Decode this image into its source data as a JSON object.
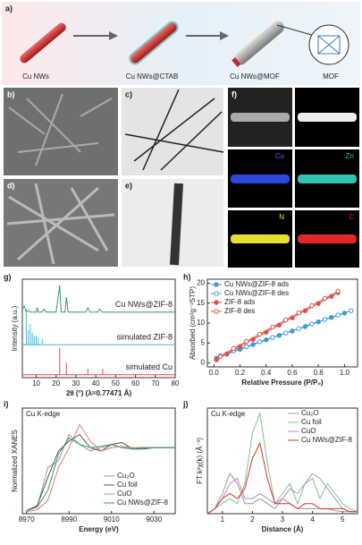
{
  "figure": {
    "a": {
      "label": "a)",
      "items": [
        "Cu NWs",
        "Cu NWs@CTAB",
        "Cu NWs@MOF",
        "MOF"
      ]
    },
    "panels": [
      "b)",
      "c)",
      "d)",
      "e)",
      "f)"
    ],
    "f_maps": [
      "Cu",
      "Zn",
      "N",
      "C"
    ]
  },
  "chart_data": [
    {
      "type": "line",
      "panel": "g)",
      "xlabel": "2θ (°) (λ=0.77471 Å)",
      "ylabel": "Intensity (a.u.)",
      "xlim": [
        3,
        80
      ],
      "xticks": [
        10,
        20,
        30,
        40,
        50,
        60,
        70,
        80
      ],
      "ylim": [
        0,
        3.3
      ],
      "legend": "inline",
      "series": [
        {
          "name": "Cu NWs@ZIF-8",
          "color": "#3a9a6a",
          "x": [
            3,
            4,
            5,
            6,
            7,
            8,
            9,
            10,
            10.5,
            11,
            13,
            14,
            15,
            20,
            21.8,
            22.5,
            24.5,
            25.2,
            26,
            35,
            36,
            37,
            41,
            42,
            43,
            60,
            80
          ],
          "values": [
            2.3,
            2.4,
            2.2,
            2.25,
            2.2,
            2.2,
            2.2,
            2.2,
            2.35,
            2.2,
            2.2,
            2.3,
            2.2,
            2.2,
            3.1,
            2.2,
            2.2,
            2.7,
            2.2,
            2.2,
            2.35,
            2.2,
            2.2,
            2.3,
            2.2,
            2.2,
            2.2
          ]
        },
        {
          "name": "simulated ZIF-8",
          "color": "#4ab3d6",
          "x": [
            3,
            5,
            5,
            5,
            6,
            6,
            6,
            7,
            7,
            7,
            8,
            8,
            8,
            9,
            9,
            9,
            10,
            10,
            10,
            11,
            11,
            11,
            13,
            13,
            13,
            80
          ],
          "values": [
            1.1,
            1.1,
            2.3,
            1.1,
            1.1,
            1.6,
            1.1,
            1.1,
            1.8,
            1.1,
            1.1,
            1.5,
            1.1,
            1.1,
            1.4,
            1.1,
            1.1,
            1.4,
            1.1,
            1.1,
            1.35,
            1.1,
            1.1,
            1.3,
            1.1,
            1.1
          ]
        },
        {
          "name": "simulated Cu",
          "color": "#e0504a",
          "x": [
            3,
            21.8,
            21.8,
            21.8,
            25.2,
            25.2,
            25.2,
            36,
            36,
            36,
            43.5,
            43.5,
            43.5,
            80
          ],
          "values": [
            0.1,
            0.1,
            1.0,
            0.1,
            0.1,
            0.5,
            0.1,
            0.1,
            0.3,
            0.1,
            0.1,
            0.3,
            0.1,
            0.1
          ]
        }
      ]
    },
    {
      "type": "scatter",
      "panel": "h)",
      "xlabel": "Relative Pressure (P/P₀)",
      "ylabel": "Absorbed (cm³g⁻¹STP)",
      "xlim": [
        -0.05,
        1.1
      ],
      "xticks": [
        {
          "value": 0,
          "label": "0.0"
        },
        {
          "value": 0.2,
          "label": "0.2"
        },
        {
          "value": 0.4,
          "label": "0.4"
        },
        {
          "value": 0.6,
          "label": "0.6"
        },
        {
          "value": 0.8,
          "label": "0.8"
        },
        {
          "value": 1,
          "label": "1.0"
        }
      ],
      "ylim": [
        -1,
        21
      ],
      "yticks": [
        0,
        5,
        10,
        15,
        20
      ],
      "legend": "top-left",
      "series": [
        {
          "name": "Cu NWs@ZIF-8 ads",
          "color": "#3a9bd6",
          "marker": "filled",
          "x": [
            0.02,
            0.1,
            0.2,
            0.3,
            0.4,
            0.5,
            0.6,
            0.7,
            0.8,
            0.9,
            1.0
          ],
          "values": [
            1.2,
            2.2,
            3.4,
            4.6,
            5.8,
            6.9,
            8.0,
            9.1,
            10.3,
            11.4,
            12.5
          ]
        },
        {
          "name": "Cu NWs@ZIF-8 des",
          "color": "#3a9bd6",
          "marker": "open",
          "x": [
            1.05,
            0.95,
            0.85,
            0.75,
            0.65,
            0.55,
            0.45,
            0.35,
            0.25,
            0.15,
            0.05
          ],
          "values": [
            13.1,
            12.0,
            10.9,
            9.8,
            8.6,
            7.5,
            6.4,
            5.3,
            4.1,
            3.0,
            1.8
          ]
        },
        {
          "name": "ZIF-8 ads",
          "color": "#e0504a",
          "marker": "filled",
          "x": [
            0.02,
            0.1,
            0.2,
            0.3,
            0.4,
            0.5,
            0.6,
            0.7,
            0.8,
            0.9,
            0.95
          ],
          "values": [
            0.8,
            2.3,
            4.1,
            5.9,
            7.7,
            9.5,
            11.3,
            13.1,
            14.9,
            16.7,
            17.6
          ]
        },
        {
          "name": "ZIF-8 des",
          "color": "#e0504a",
          "marker": "open",
          "x": [
            0.95,
            0.85,
            0.75,
            0.65,
            0.55,
            0.45,
            0.35,
            0.25,
            0.15,
            0.05
          ],
          "values": [
            18.0,
            16.2,
            14.4,
            12.6,
            10.8,
            9.0,
            7.2,
            5.4,
            3.6,
            1.6
          ]
        }
      ]
    },
    {
      "type": "line",
      "panel": "i)",
      "title": "Cu K-edge",
      "xlabel": "Energy (eV)",
      "ylabel": "Normalized XANES",
      "xlim": [
        8968,
        9040
      ],
      "xticks": [
        8970,
        8990,
        9010,
        9030
      ],
      "ylim": [
        0,
        1.6
      ],
      "legend": "bottom-right",
      "x": [
        8970,
        8975,
        8980,
        8985,
        8990,
        8995,
        9000,
        9005,
        9010,
        9015,
        9020,
        9025,
        9030,
        9035,
        9040
      ],
      "series": [
        {
          "name": "Cu₂O",
          "color": "#999999",
          "values": [
            0.04,
            0.1,
            0.7,
            0.8,
            1.2,
            1.05,
            0.95,
            1.0,
            1.05,
            1.0,
            1.0,
            1.0,
            1.0,
            1.0,
            1.0
          ]
        },
        {
          "name": "Cu foil",
          "color": "#555555",
          "values": [
            0.05,
            0.12,
            0.55,
            0.95,
            1.1,
            1.2,
            1.0,
            0.95,
            1.05,
            1.08,
            0.98,
            0.98,
            1.0,
            1.0,
            1.0
          ]
        },
        {
          "name": "CuO",
          "color": "#e07a7a",
          "values": [
            0.03,
            0.06,
            0.2,
            0.7,
            1.0,
            1.35,
            1.1,
            0.95,
            1.0,
            1.02,
            1.0,
            1.0,
            1.0,
            1.0,
            1.0
          ]
        },
        {
          "name": "Cu NWs@ZIF-8",
          "color": "#3a9a6a",
          "values": [
            0.05,
            0.1,
            0.35,
            0.9,
            1.15,
            1.05,
            1.0,
            1.02,
            1.05,
            1.0,
            0.98,
            1.0,
            1.0,
            1.0,
            1.0
          ]
        }
      ]
    },
    {
      "type": "line",
      "panel": "j)",
      "title": "Cu K-edge",
      "xlabel": "Distance (Å)",
      "ylabel": "FT k²χ(k) (Å⁻³)",
      "xlim": [
        0.5,
        5.5
      ],
      "xticks": [
        1,
        2,
        3,
        4,
        5
      ],
      "ylim": [
        0,
        1.05
      ],
      "legend": "top-right",
      "x": [
        0.5,
        0.75,
        1,
        1.25,
        1.5,
        1.75,
        2,
        2.25,
        2.5,
        2.75,
        3,
        3.25,
        3.5,
        3.75,
        4,
        4.25,
        4.5,
        4.75,
        5,
        5.25,
        5.5
      ],
      "series": [
        {
          "name": "Cu₂O",
          "color": "#999999",
          "values": [
            0,
            0.05,
            0.2,
            0.4,
            0.3,
            0.1,
            0.1,
            0.15,
            0.1,
            0.05,
            0.15,
            0.1,
            0.05,
            0.05,
            0.05,
            0.05,
            0.05,
            0.03,
            0.02,
            0.02,
            0.02
          ]
        },
        {
          "name": "Cu foil",
          "color": "#7cc48a",
          "values": [
            0,
            0.05,
            0.1,
            0.15,
            0.1,
            0.3,
            0.8,
            1.0,
            0.5,
            0.1,
            0.2,
            0.3,
            0.1,
            0.3,
            0.35,
            0.15,
            0.3,
            0.2,
            0.1,
            0.05,
            0.02
          ]
        },
        {
          "name": "CuO",
          "color": "#b48cc8",
          "values": [
            0,
            0.05,
            0.15,
            0.3,
            0.35,
            0.15,
            0.15,
            0.2,
            0.15,
            0.1,
            0.15,
            0.25,
            0.2,
            0.3,
            0.4,
            0.35,
            0.25,
            0.15,
            0.05,
            0.02,
            0.02
          ]
        },
        {
          "name": "Cu NWs@ZIF-8",
          "color": "#e0302a",
          "values": [
            0,
            0.05,
            0.15,
            0.2,
            0.15,
            0.25,
            0.55,
            0.7,
            0.35,
            0.1,
            0.1,
            0.1,
            0.05,
            0.1,
            0.1,
            0.05,
            0.05,
            0.05,
            0.05,
            0.02,
            0.02
          ]
        }
      ]
    }
  ]
}
